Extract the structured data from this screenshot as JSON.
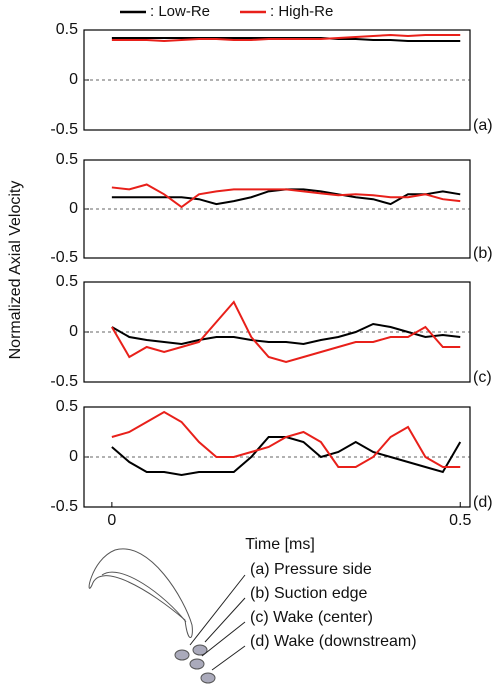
{
  "chart_data": [
    {
      "type": "line",
      "annotation": "(a)",
      "ylabel": "Normalized Axial Velocity",
      "x": [
        0,
        0.025,
        0.05,
        0.075,
        0.1,
        0.125,
        0.15,
        0.175,
        0.2,
        0.225,
        0.25,
        0.275,
        0.3,
        0.325,
        0.35,
        0.375,
        0.4,
        0.425,
        0.45,
        0.475,
        0.5
      ],
      "xlim": [
        -0.04,
        0.514
      ],
      "ylim": [
        -0.5,
        0.5
      ],
      "yticks": [
        0.5,
        0,
        -0.5
      ],
      "zero_line": true,
      "series": [
        {
          "name": ": Low-Re",
          "color": "#000000",
          "values": [
            0.42,
            0.42,
            0.42,
            0.42,
            0.42,
            0.42,
            0.42,
            0.42,
            0.42,
            0.42,
            0.42,
            0.42,
            0.42,
            0.41,
            0.41,
            0.4,
            0.4,
            0.39,
            0.39,
            0.39,
            0.39
          ]
        },
        {
          "name": ": High-Re",
          "color": "#e8201a",
          "values": [
            0.4,
            0.4,
            0.4,
            0.39,
            0.4,
            0.41,
            0.41,
            0.4,
            0.4,
            0.41,
            0.41,
            0.41,
            0.41,
            0.42,
            0.43,
            0.44,
            0.45,
            0.44,
            0.45,
            0.45,
            0.45
          ]
        }
      ]
    },
    {
      "type": "line",
      "annotation": "(b)",
      "x": [
        0,
        0.025,
        0.05,
        0.075,
        0.1,
        0.125,
        0.15,
        0.175,
        0.2,
        0.225,
        0.25,
        0.275,
        0.3,
        0.325,
        0.35,
        0.375,
        0.4,
        0.425,
        0.45,
        0.475,
        0.5
      ],
      "xlim": [
        -0.04,
        0.514
      ],
      "ylim": [
        -0.5,
        0.5
      ],
      "yticks": [
        0.5,
        0,
        -0.5
      ],
      "zero_line": true,
      "series": [
        {
          "color": "#000000",
          "values": [
            0.12,
            0.12,
            0.12,
            0.12,
            0.12,
            0.1,
            0.05,
            0.08,
            0.12,
            0.18,
            0.2,
            0.2,
            0.18,
            0.15,
            0.12,
            0.1,
            0.05,
            0.15,
            0.15,
            0.18,
            0.15
          ]
        },
        {
          "color": "#e8201a",
          "values": [
            0.22,
            0.2,
            0.25,
            0.15,
            0.02,
            0.15,
            0.18,
            0.2,
            0.2,
            0.2,
            0.2,
            0.18,
            0.16,
            0.14,
            0.15,
            0.14,
            0.12,
            0.12,
            0.15,
            0.1,
            0.08
          ]
        }
      ]
    },
    {
      "type": "line",
      "annotation": "(c)",
      "x": [
        0,
        0.025,
        0.05,
        0.075,
        0.1,
        0.125,
        0.15,
        0.175,
        0.2,
        0.225,
        0.25,
        0.275,
        0.3,
        0.325,
        0.35,
        0.375,
        0.4,
        0.425,
        0.45,
        0.475,
        0.5
      ],
      "xlim": [
        -0.04,
        0.514
      ],
      "ylim": [
        -0.5,
        0.5
      ],
      "yticks": [
        0.5,
        0,
        -0.5
      ],
      "zero_line": true,
      "series": [
        {
          "color": "#000000",
          "values": [
            0.05,
            -0.05,
            -0.08,
            -0.1,
            -0.12,
            -0.08,
            -0.05,
            -0.05,
            -0.08,
            -0.1,
            -0.1,
            -0.12,
            -0.08,
            -0.05,
            0.0,
            0.08,
            0.05,
            0.0,
            -0.05,
            -0.03,
            -0.05
          ]
        },
        {
          "color": "#e8201a",
          "values": [
            0.05,
            -0.25,
            -0.15,
            -0.2,
            -0.15,
            -0.1,
            0.1,
            0.3,
            -0.05,
            -0.25,
            -0.3,
            -0.25,
            -0.2,
            -0.15,
            -0.1,
            -0.1,
            -0.05,
            -0.05,
            0.05,
            -0.15,
            -0.15
          ]
        }
      ]
    },
    {
      "type": "line",
      "annotation": "(d)",
      "xlabel": "Time [ms]",
      "x": [
        0,
        0.025,
        0.05,
        0.075,
        0.1,
        0.125,
        0.15,
        0.175,
        0.2,
        0.225,
        0.25,
        0.275,
        0.3,
        0.325,
        0.35,
        0.375,
        0.4,
        0.425,
        0.45,
        0.475,
        0.5
      ],
      "xlim": [
        -0.04,
        0.514
      ],
      "xticks": [
        0,
        0.5
      ],
      "ylim": [
        -0.5,
        0.5
      ],
      "yticks": [
        0.5,
        0,
        -0.5
      ],
      "zero_line": true,
      "series": [
        {
          "color": "#000000",
          "values": [
            0.1,
            -0.05,
            -0.15,
            -0.15,
            -0.18,
            -0.15,
            -0.15,
            -0.15,
            0.0,
            0.2,
            0.2,
            0.15,
            0.0,
            0.05,
            0.15,
            0.05,
            0.0,
            -0.05,
            -0.1,
            -0.15,
            0.15
          ]
        },
        {
          "color": "#e8201a",
          "values": [
            0.2,
            0.25,
            0.35,
            0.45,
            0.35,
            0.15,
            0.0,
            0.0,
            0.05,
            0.1,
            0.2,
            0.25,
            0.15,
            -0.1,
            -0.1,
            0.0,
            0.2,
            0.3,
            0.0,
            -0.1,
            -0.1
          ]
        }
      ]
    }
  ],
  "diagram": {
    "items": [
      "(a)  Pressure side",
      "(b)  Suction edge",
      "(c)  Wake (center)",
      "(d)  Wake (downstream)"
    ]
  }
}
